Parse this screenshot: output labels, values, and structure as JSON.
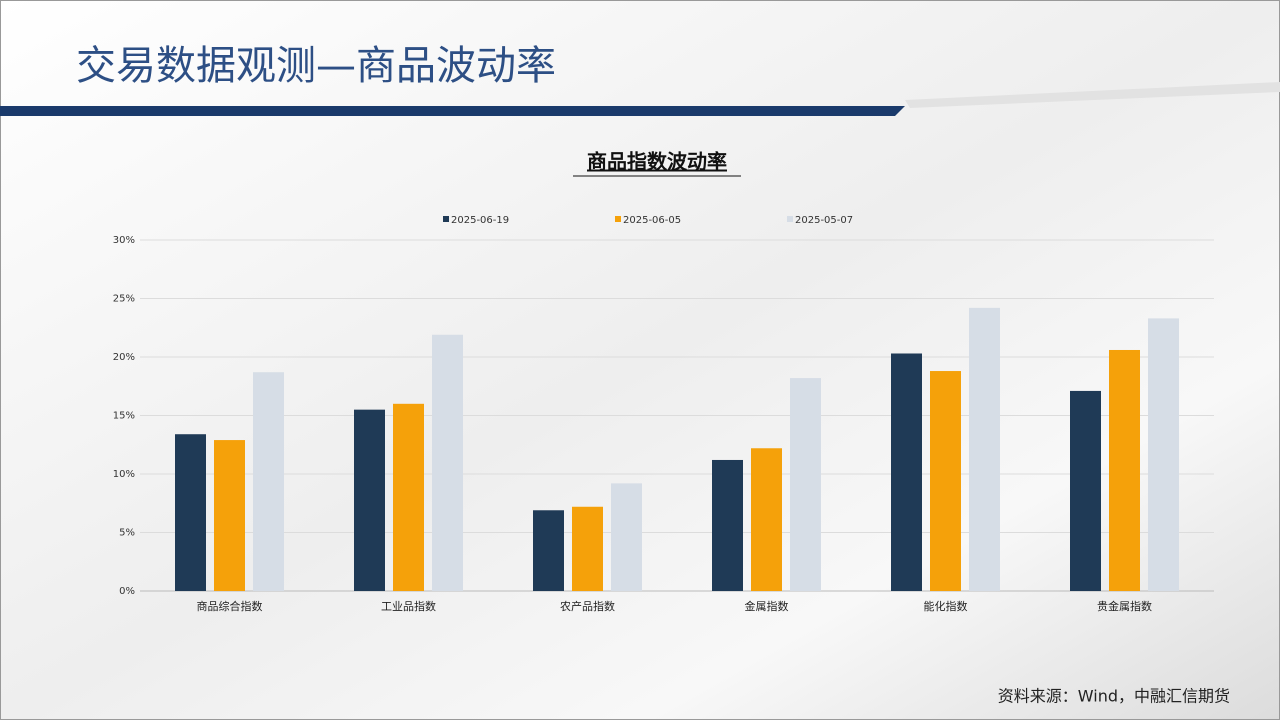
{
  "slide_title": "交易数据观测—商品波动率",
  "source": "资料来源：Wind，中融汇信期货",
  "chart_data": {
    "type": "bar",
    "title": "商品指数波动率",
    "categories": [
      "商品综合指数",
      "工业品指数",
      "农产品指数",
      "金属指数",
      "能化指数",
      "贵金属指数"
    ],
    "series": [
      {
        "name": "2025-06-19",
        "color": "#1f3a56",
        "values": [
          13.4,
          15.5,
          6.9,
          11.2,
          20.3,
          17.1
        ]
      },
      {
        "name": "2025-06-05",
        "color": "#f5a10a",
        "values": [
          12.9,
          16.0,
          7.2,
          12.2,
          18.8,
          20.6
        ]
      },
      {
        "name": "2025-05-07",
        "color": "#d6dde6",
        "values": [
          18.7,
          21.9,
          9.2,
          18.2,
          24.2,
          23.3
        ]
      }
    ],
    "ylim": [
      0,
      30
    ],
    "yticks": [
      {
        "value": 0,
        "label": "0%"
      },
      {
        "value": 5,
        "label": "5%"
      },
      {
        "value": 10,
        "label": "10%"
      },
      {
        "value": 15,
        "label": "15%"
      },
      {
        "value": 20,
        "label": "20%"
      },
      {
        "value": 25,
        "label": "25%"
      },
      {
        "value": 30,
        "label": "30%"
      }
    ],
    "grid": true,
    "legend": "top"
  }
}
